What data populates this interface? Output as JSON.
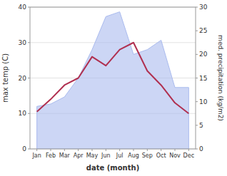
{
  "chart_data": {
    "type": "line",
    "categories": [
      "Jan",
      "Feb",
      "Mar",
      "Apr",
      "May",
      "Jun",
      "Jul",
      "Aug",
      "Sep",
      "Oct",
      "Nov",
      "Dec"
    ],
    "series": [
      {
        "type": "line",
        "color": "#b03050",
        "values": [
          10.5,
          14,
          18,
          20,
          26,
          23.5,
          28,
          30,
          22,
          18,
          13,
          10
        ]
      },
      {
        "type": "area",
        "axis": "y2",
        "color": "#aabbee",
        "values": [
          9,
          9.5,
          11,
          15,
          21,
          28,
          29,
          20,
          21,
          23,
          13,
          13
        ]
      }
    ],
    "xlabel": "date (month)",
    "ylabel": "max temp (C)",
    "y2label": "med. precipitation (kg/m2)",
    "ylim": [
      0,
      40
    ],
    "yticks": [
      0,
      10,
      20,
      30,
      40
    ],
    "y2lim": [
      0,
      30
    ],
    "y2ticks": [
      0,
      5,
      10,
      15,
      20,
      25,
      30
    ],
    "grid": true
  }
}
